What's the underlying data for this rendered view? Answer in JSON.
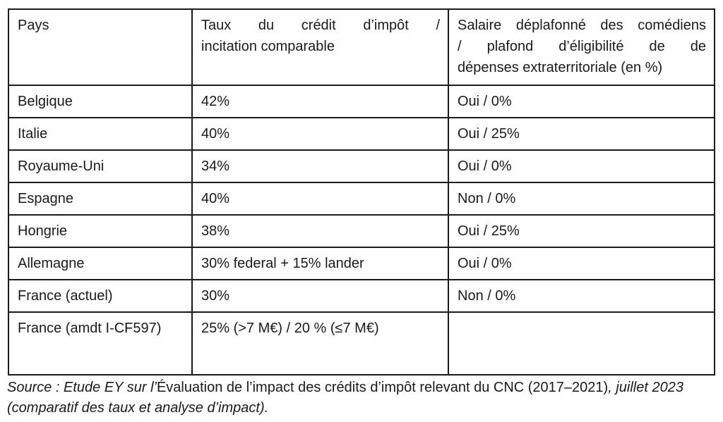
{
  "table": {
    "header": {
      "pays": "Pays",
      "taux_lines": {
        "0": "Taux du crédit d’impôt /",
        "1": "incitation comparable"
      },
      "salaire_lines": {
        "0": "Salaire déplafonné des comédiens",
        "1": "/ plafond d’éligibilité de de",
        "2": "dépenses extraterritoriale (en %)"
      }
    },
    "rows": [
      {
        "pays": "Belgique",
        "taux": "42%",
        "salaire": "Oui / 0%"
      },
      {
        "pays": "Italie",
        "taux": "40%",
        "salaire": "Oui / 25%"
      },
      {
        "pays": "Royaume-Uni",
        "taux": "34%",
        "salaire": "Oui / 0%"
      },
      {
        "pays": "Espagne",
        "taux": "40%",
        "salaire": "Non / 0%"
      },
      {
        "pays": "Hongrie",
        "taux": "38%",
        "salaire": "Oui / 25%"
      },
      {
        "pays": "Allemagne",
        "taux": "30% federal + 15% lander",
        "salaire": "Oui / 0%"
      },
      {
        "pays": "France (actuel)",
        "taux": "30%",
        "salaire": "Non / 0%"
      },
      {
        "pays": "France (amdt I-CF597)",
        "taux": "25% (>7 M€) / 20 % (≤7 M€)",
        "salaire": ""
      }
    ]
  },
  "source": {
    "part1_italic": "Source : Etude EY sur l’",
    "part2_regular": "Évaluation de l’impact des crédits d’impôt relevant du CNC (2017–2021)",
    "part3_italic": ", juillet 2023 (comparatif des taux et analyse d’impact)."
  },
  "colors": {
    "text": "#1a1a1a",
    "border": "#1a1a1a",
    "background": "#ffffff"
  }
}
